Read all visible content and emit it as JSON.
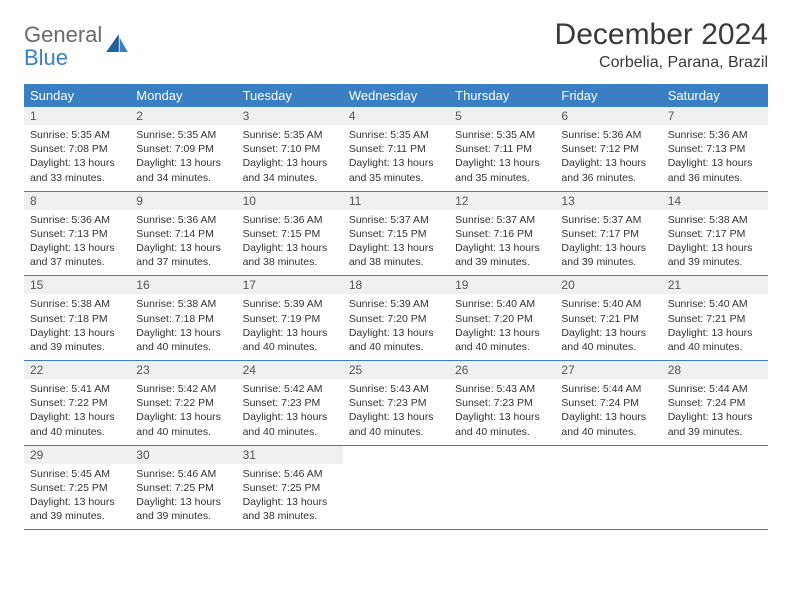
{
  "logo": {
    "general": "General",
    "blue": "Blue"
  },
  "title": "December 2024",
  "location": "Corbelia, Parana, Brazil",
  "colors": {
    "header_bg": "#3a7fc4",
    "header_text": "#ffffff",
    "daynum_bg": "#eef0f2",
    "border": "#3a7fc4",
    "logo_gray": "#6b6b6b",
    "logo_blue": "#3a7fc4"
  },
  "weekdays": [
    "Sunday",
    "Monday",
    "Tuesday",
    "Wednesday",
    "Thursday",
    "Friday",
    "Saturday"
  ],
  "days": [
    {
      "n": "1",
      "sr": "5:35 AM",
      "ss": "7:08 PM",
      "dl": "13 hours and 33 minutes."
    },
    {
      "n": "2",
      "sr": "5:35 AM",
      "ss": "7:09 PM",
      "dl": "13 hours and 34 minutes."
    },
    {
      "n": "3",
      "sr": "5:35 AM",
      "ss": "7:10 PM",
      "dl": "13 hours and 34 minutes."
    },
    {
      "n": "4",
      "sr": "5:35 AM",
      "ss": "7:11 PM",
      "dl": "13 hours and 35 minutes."
    },
    {
      "n": "5",
      "sr": "5:35 AM",
      "ss": "7:11 PM",
      "dl": "13 hours and 35 minutes."
    },
    {
      "n": "6",
      "sr": "5:36 AM",
      "ss": "7:12 PM",
      "dl": "13 hours and 36 minutes."
    },
    {
      "n": "7",
      "sr": "5:36 AM",
      "ss": "7:13 PM",
      "dl": "13 hours and 36 minutes."
    },
    {
      "n": "8",
      "sr": "5:36 AM",
      "ss": "7:13 PM",
      "dl": "13 hours and 37 minutes."
    },
    {
      "n": "9",
      "sr": "5:36 AM",
      "ss": "7:14 PM",
      "dl": "13 hours and 37 minutes."
    },
    {
      "n": "10",
      "sr": "5:36 AM",
      "ss": "7:15 PM",
      "dl": "13 hours and 38 minutes."
    },
    {
      "n": "11",
      "sr": "5:37 AM",
      "ss": "7:15 PM",
      "dl": "13 hours and 38 minutes."
    },
    {
      "n": "12",
      "sr": "5:37 AM",
      "ss": "7:16 PM",
      "dl": "13 hours and 39 minutes."
    },
    {
      "n": "13",
      "sr": "5:37 AM",
      "ss": "7:17 PM",
      "dl": "13 hours and 39 minutes."
    },
    {
      "n": "14",
      "sr": "5:38 AM",
      "ss": "7:17 PM",
      "dl": "13 hours and 39 minutes."
    },
    {
      "n": "15",
      "sr": "5:38 AM",
      "ss": "7:18 PM",
      "dl": "13 hours and 39 minutes."
    },
    {
      "n": "16",
      "sr": "5:38 AM",
      "ss": "7:18 PM",
      "dl": "13 hours and 40 minutes."
    },
    {
      "n": "17",
      "sr": "5:39 AM",
      "ss": "7:19 PM",
      "dl": "13 hours and 40 minutes."
    },
    {
      "n": "18",
      "sr": "5:39 AM",
      "ss": "7:20 PM",
      "dl": "13 hours and 40 minutes."
    },
    {
      "n": "19",
      "sr": "5:40 AM",
      "ss": "7:20 PM",
      "dl": "13 hours and 40 minutes."
    },
    {
      "n": "20",
      "sr": "5:40 AM",
      "ss": "7:21 PM",
      "dl": "13 hours and 40 minutes."
    },
    {
      "n": "21",
      "sr": "5:40 AM",
      "ss": "7:21 PM",
      "dl": "13 hours and 40 minutes."
    },
    {
      "n": "22",
      "sr": "5:41 AM",
      "ss": "7:22 PM",
      "dl": "13 hours and 40 minutes."
    },
    {
      "n": "23",
      "sr": "5:42 AM",
      "ss": "7:22 PM",
      "dl": "13 hours and 40 minutes."
    },
    {
      "n": "24",
      "sr": "5:42 AM",
      "ss": "7:23 PM",
      "dl": "13 hours and 40 minutes."
    },
    {
      "n": "25",
      "sr": "5:43 AM",
      "ss": "7:23 PM",
      "dl": "13 hours and 40 minutes."
    },
    {
      "n": "26",
      "sr": "5:43 AM",
      "ss": "7:23 PM",
      "dl": "13 hours and 40 minutes."
    },
    {
      "n": "27",
      "sr": "5:44 AM",
      "ss": "7:24 PM",
      "dl": "13 hours and 40 minutes."
    },
    {
      "n": "28",
      "sr": "5:44 AM",
      "ss": "7:24 PM",
      "dl": "13 hours and 39 minutes."
    },
    {
      "n": "29",
      "sr": "5:45 AM",
      "ss": "7:25 PM",
      "dl": "13 hours and 39 minutes."
    },
    {
      "n": "30",
      "sr": "5:46 AM",
      "ss": "7:25 PM",
      "dl": "13 hours and 39 minutes."
    },
    {
      "n": "31",
      "sr": "5:46 AM",
      "ss": "7:25 PM",
      "dl": "13 hours and 38 minutes."
    }
  ],
  "labels": {
    "sunrise": "Sunrise:",
    "sunset": "Sunset:",
    "daylight": "Daylight:"
  }
}
